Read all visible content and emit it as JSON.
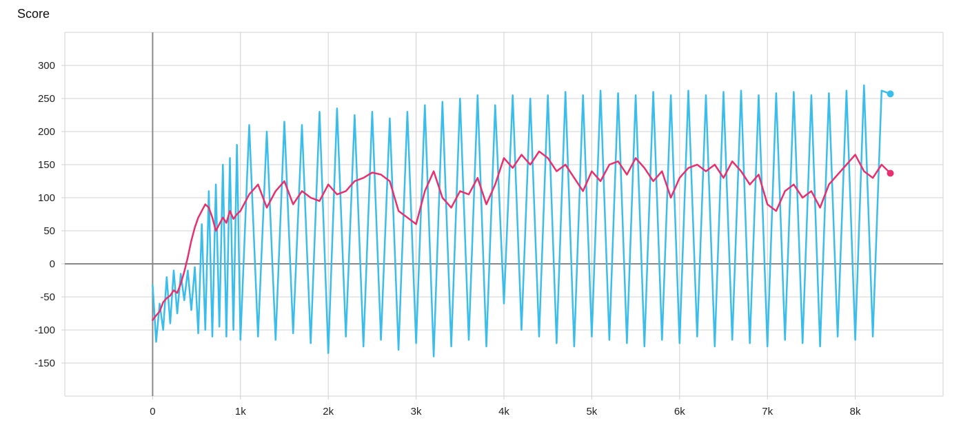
{
  "chart_data": {
    "type": "line",
    "title": "Score",
    "xlabel": "",
    "ylabel": "",
    "xlim": [
      -1000,
      9000
    ],
    "ylim": [
      -200,
      350
    ],
    "x_ticks": [
      0,
      1000,
      2000,
      3000,
      4000,
      5000,
      6000,
      7000,
      8000
    ],
    "x_tick_labels": [
      "0",
      "1k",
      "2k",
      "3k",
      "4k",
      "5k",
      "6k",
      "7k",
      "8k"
    ],
    "y_ticks": [
      -150,
      -100,
      -50,
      0,
      50,
      100,
      150,
      200,
      250,
      300
    ],
    "y_tick_labels": [
      "-150",
      "-100",
      "-50",
      "0",
      "50",
      "100",
      "150",
      "200",
      "250",
      "300"
    ],
    "grid": true,
    "legend": "none",
    "colors": {
      "raw": "#3bbdec",
      "smoothed": "#e8306e",
      "grid": "#d0d0d0",
      "axis": "#888888"
    },
    "series": [
      {
        "x": [
          0,
          40,
          80,
          120,
          160,
          200,
          240,
          280,
          320,
          360,
          400,
          440,
          480,
          520,
          560,
          600,
          640,
          680,
          720,
          760,
          800,
          840,
          880,
          920,
          960,
          1000,
          1100,
          1200,
          1300,
          1400,
          1500,
          1600,
          1700,
          1800,
          1900,
          2000,
          2100,
          2200,
          2300,
          2400,
          2500,
          2600,
          2700,
          2800,
          2900,
          3000,
          3100,
          3200,
          3300,
          3400,
          3500,
          3600,
          3700,
          3800,
          3900,
          4000,
          4100,
          4200,
          4300,
          4400,
          4500,
          4600,
          4700,
          4800,
          4900,
          5000,
          5100,
          5200,
          5300,
          5400,
          5500,
          5600,
          5700,
          5800,
          5900,
          6000,
          6100,
          6200,
          6300,
          6400,
          6500,
          6600,
          6700,
          6800,
          6900,
          7000,
          7100,
          7200,
          7300,
          7400,
          7500,
          7600,
          7700,
          7800,
          7900,
          8000,
          8100,
          8200,
          8300,
          8400
        ],
        "values": [
          -32,
          -118,
          -60,
          -100,
          -20,
          -90,
          -10,
          -75,
          -15,
          -55,
          -10,
          -70,
          -5,
          -105,
          60,
          -100,
          110,
          -110,
          120,
          -95,
          150,
          -110,
          160,
          -100,
          180,
          -115,
          210,
          -110,
          200,
          -115,
          215,
          -105,
          210,
          -120,
          230,
          -135,
          235,
          -110,
          225,
          -125,
          230,
          -115,
          220,
          -130,
          230,
          -120,
          240,
          -140,
          245,
          -125,
          250,
          -115,
          255,
          -125,
          240,
          -60,
          255,
          -100,
          250,
          -110,
          255,
          -120,
          260,
          -125,
          255,
          -110,
          262,
          -115,
          258,
          -120,
          255,
          -125,
          260,
          -115,
          255,
          -120,
          262,
          -110,
          255,
          -125,
          260,
          -115,
          262,
          -120,
          255,
          -125,
          258,
          -115,
          260,
          -120,
          255,
          -125,
          258,
          -110,
          262,
          -115,
          270,
          -110,
          262,
          257
        ]
      },
      {
        "x": [
          0,
          40,
          80,
          120,
          160,
          200,
          240,
          280,
          320,
          360,
          400,
          440,
          480,
          520,
          560,
          600,
          640,
          680,
          720,
          760,
          800,
          840,
          880,
          920,
          960,
          1000,
          1100,
          1200,
          1300,
          1400,
          1500,
          1600,
          1700,
          1800,
          1900,
          2000,
          2100,
          2200,
          2300,
          2400,
          2500,
          2600,
          2700,
          2800,
          2900,
          3000,
          3100,
          3200,
          3300,
          3400,
          3500,
          3600,
          3700,
          3800,
          3900,
          4000,
          4100,
          4200,
          4300,
          4400,
          4500,
          4600,
          4700,
          4800,
          4900,
          5000,
          5100,
          5200,
          5300,
          5400,
          5500,
          5600,
          5700,
          5800,
          5900,
          6000,
          6100,
          6200,
          6300,
          6400,
          6500,
          6600,
          6700,
          6800,
          6900,
          7000,
          7100,
          7200,
          7300,
          7400,
          7500,
          7600,
          7700,
          7800,
          7900,
          8000,
          8100,
          8200,
          8300,
          8400
        ],
        "values": [
          -85,
          -78,
          -72,
          -58,
          -52,
          -48,
          -40,
          -44,
          -30,
          -12,
          10,
          35,
          55,
          70,
          80,
          90,
          85,
          70,
          50,
          60,
          70,
          62,
          80,
          68,
          75,
          80,
          105,
          120,
          85,
          110,
          125,
          90,
          110,
          100,
          95,
          120,
          105,
          110,
          125,
          130,
          138,
          135,
          125,
          80,
          70,
          60,
          110,
          140,
          100,
          85,
          110,
          105,
          130,
          90,
          120,
          160,
          145,
          165,
          150,
          170,
          160,
          140,
          150,
          130,
          110,
          140,
          125,
          150,
          155,
          135,
          160,
          145,
          125,
          140,
          100,
          130,
          145,
          150,
          140,
          150,
          130,
          155,
          140,
          120,
          135,
          90,
          80,
          110,
          120,
          100,
          110,
          85,
          120,
          135,
          150,
          165,
          140,
          130,
          150,
          137
        ]
      }
    ]
  }
}
